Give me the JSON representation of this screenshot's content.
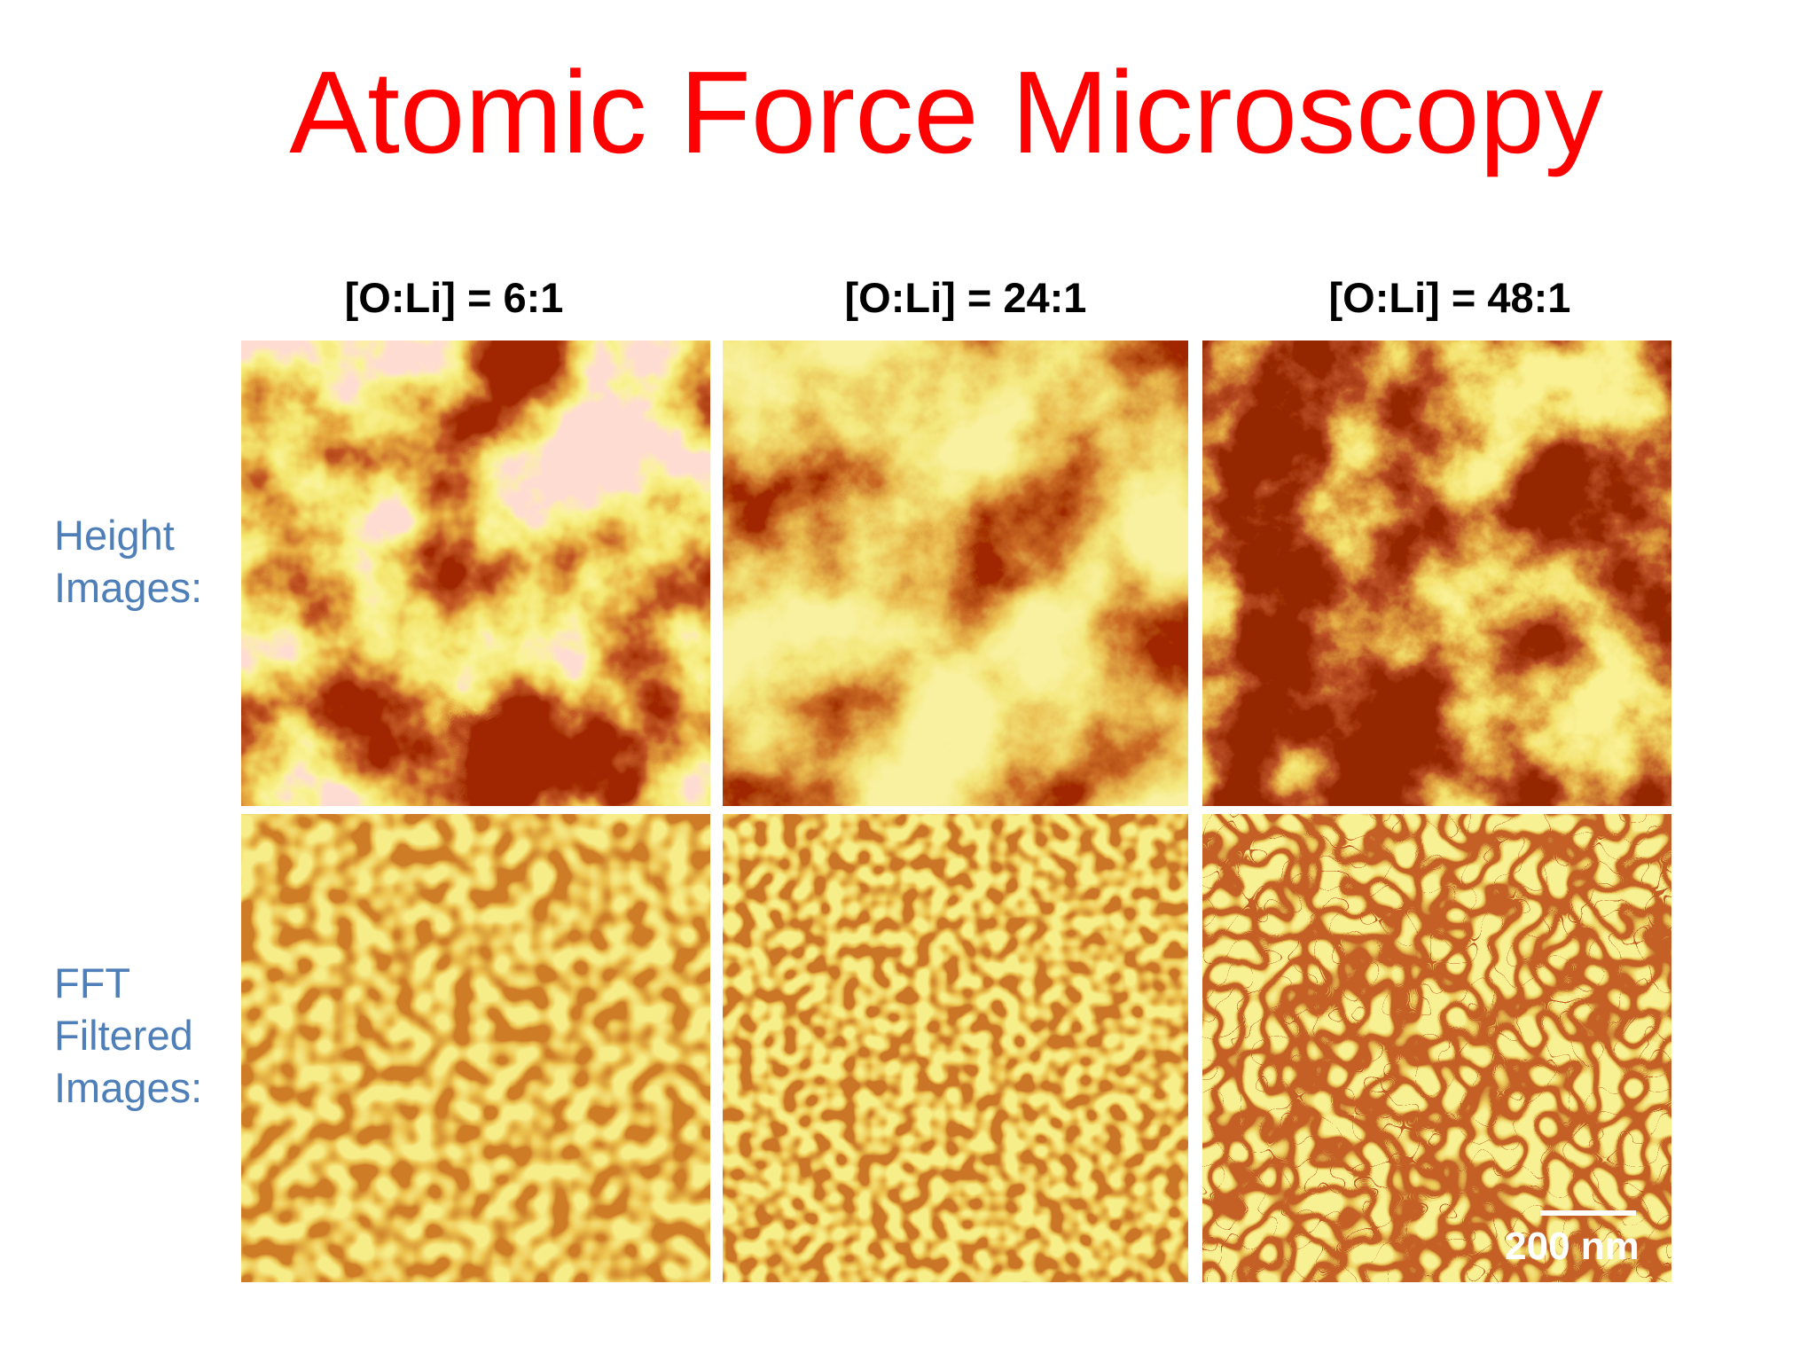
{
  "slide": {
    "title": "Atomic Force Microscopy",
    "columns": [
      "[O:Li] = 6:1",
      "[O:Li] = 24:1",
      "[O:Li] = 48:1"
    ],
    "rows": [
      {
        "label_lines": [
          "Height",
          "Images:"
        ]
      },
      {
        "label_lines": [
          "FFT",
          "Filtered",
          "Images:"
        ]
      }
    ],
    "scale_bar": "200 nm"
  }
}
